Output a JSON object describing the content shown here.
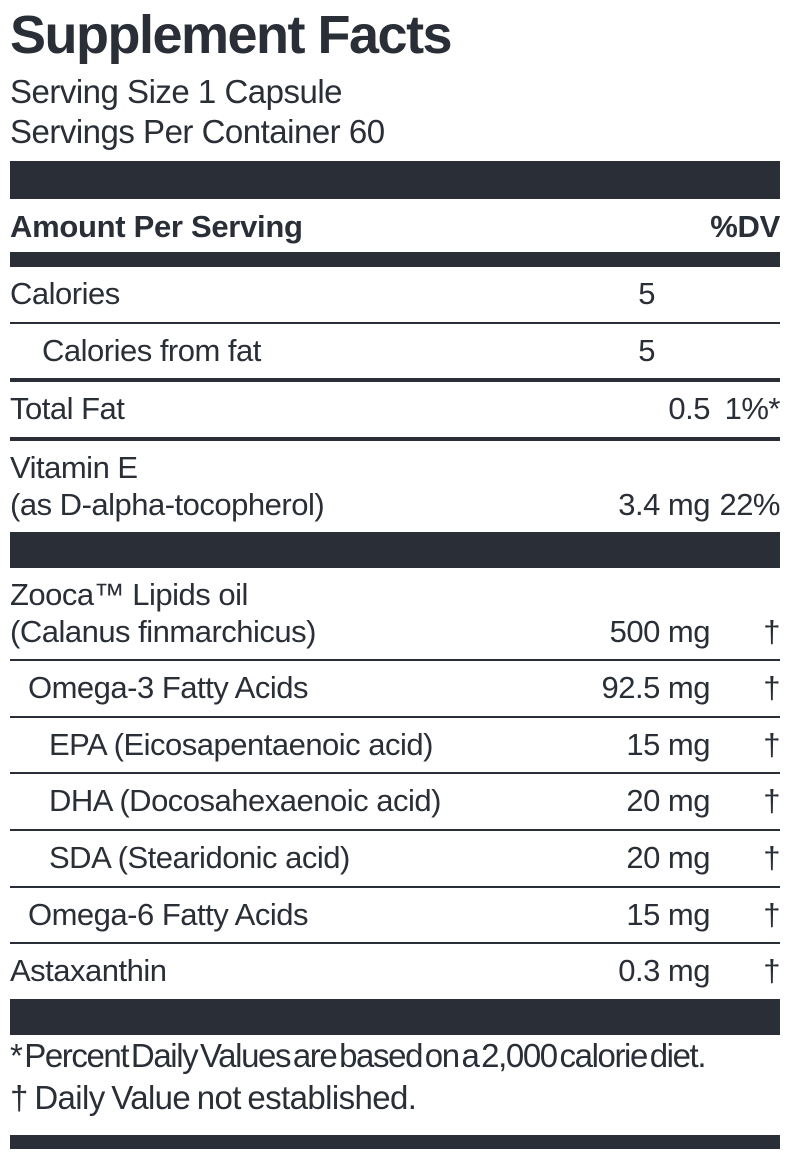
{
  "colors": {
    "ink": "#2a2e37",
    "background": "#ffffff"
  },
  "label": {
    "title": "Supplement Facts",
    "serving_size": "Serving Size 1 Capsule",
    "servings_per_container": "Servings Per Container 60",
    "columns": {
      "amount_header": "Amount Per Serving",
      "dv_header": "%DV"
    },
    "rows": [
      {
        "name": "Calories",
        "amount": "5",
        "dv": "",
        "indent": 0,
        "amount_inset": true,
        "rule": "thin"
      },
      {
        "name": "Calories from fat",
        "amount": "5",
        "dv": "",
        "indent": 1,
        "amount_inset": true,
        "rule": "medium"
      },
      {
        "name": "Total Fat",
        "amount": "0.5",
        "dv": "1%*",
        "indent": 0,
        "rule": "medium"
      },
      {
        "name": "Vitamin E",
        "name2": "(as D-alpha-tocopherol)",
        "amount": "3.4 mg",
        "dv": "22%",
        "indent": 0,
        "rule": "none",
        "bar_after": true
      },
      {
        "name": "Zooca™ Lipids oil",
        "name2": "(Calanus finmarchicus)",
        "amount": "500 mg",
        "dv": "†",
        "indent": 0,
        "rule": "thin"
      },
      {
        "name": "Omega-3 Fatty Acids",
        "amount": "92.5 mg",
        "dv": "†",
        "indent": 2,
        "rule": "thin"
      },
      {
        "name": "EPA (Eicosapentaenoic acid)",
        "amount": "15 mg",
        "dv": "†",
        "indent": 3,
        "rule": "thin"
      },
      {
        "name": "DHA (Docosahexaenoic acid)",
        "amount": "20 mg",
        "dv": "†",
        "indent": 3,
        "rule": "thin"
      },
      {
        "name": "SDA (Stearidonic acid)",
        "amount": "20 mg",
        "dv": "†",
        "indent": 3,
        "rule": "thin"
      },
      {
        "name": "Omega-6 Fatty Acids",
        "amount": "15 mg",
        "dv": "†",
        "indent": 2,
        "rule": "thin"
      },
      {
        "name": "Astaxanthin",
        "amount": "0.3 mg",
        "dv": "†",
        "indent": 0,
        "rule": "none",
        "bar_after": true
      }
    ],
    "footnotes": [
      "* Percent Daily Values are based on a 2,000 calorie diet.",
      "† Daily Value not established."
    ]
  }
}
